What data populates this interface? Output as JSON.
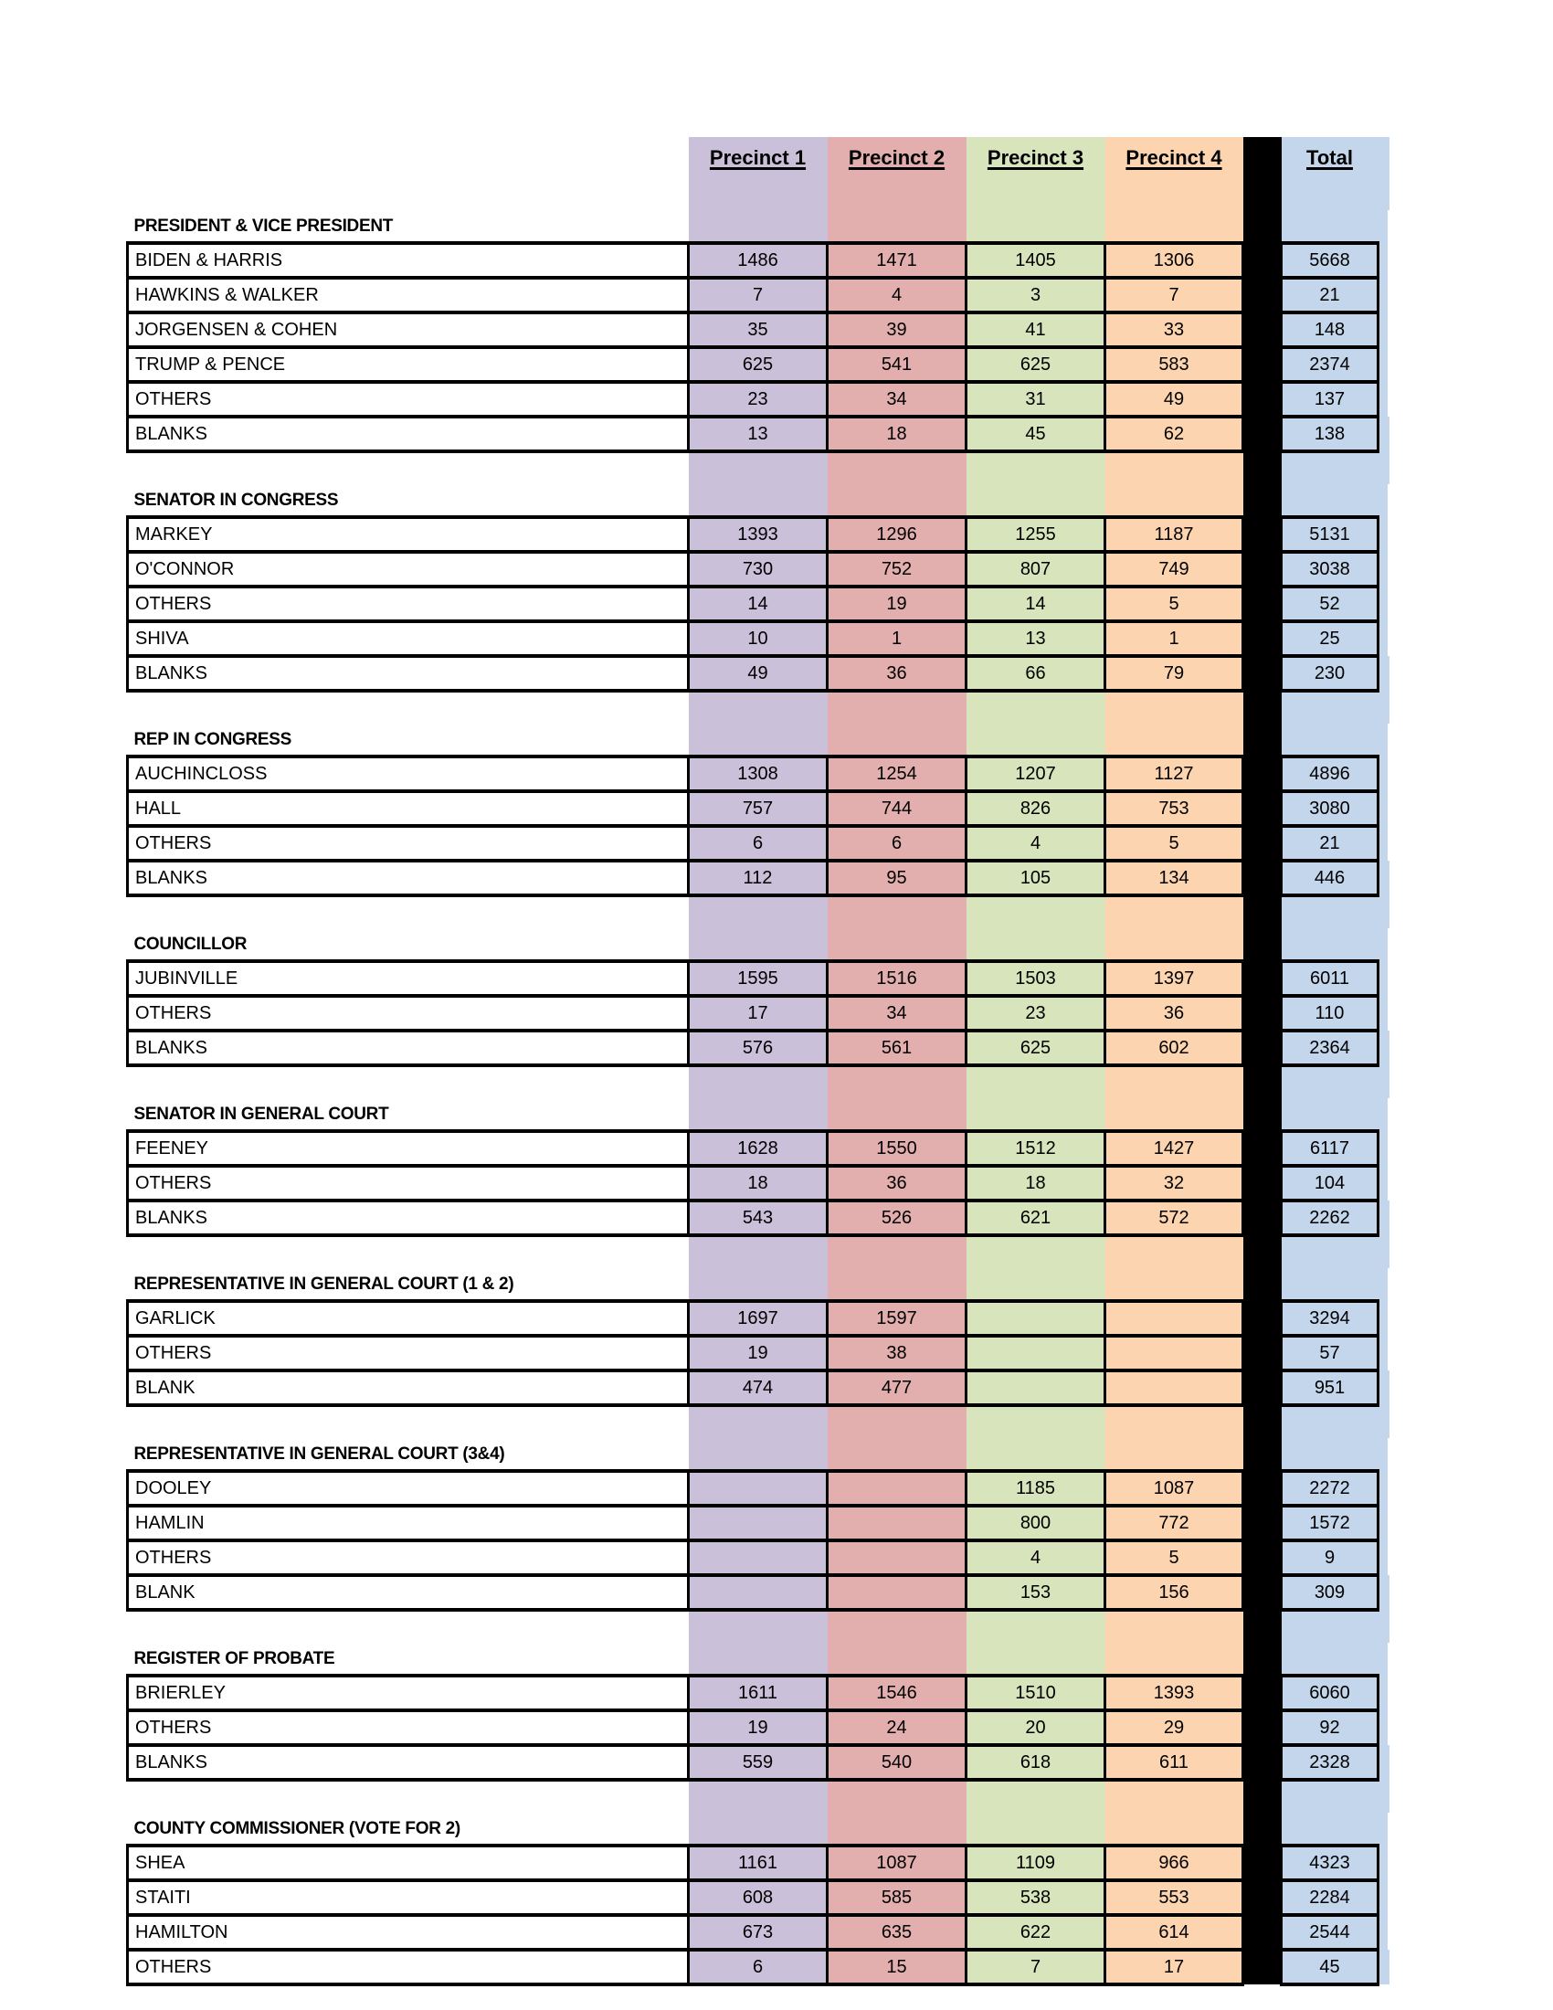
{
  "header": {
    "columns": [
      "Precinct 1",
      "Precinct 2",
      "Precinct 3",
      "Precinct 4"
    ],
    "total": "Total"
  },
  "colors": {
    "precinct1": "#CBC0DA",
    "precinct2": "#E2AFAE",
    "precinct3": "#D8E4BC",
    "precinct4": "#FCD5B0",
    "total": "#C3D6EB",
    "separator": "#000000"
  },
  "sections": [
    {
      "title": "PRESIDENT & VICE PRESIDENT",
      "rows": [
        {
          "label": "BIDEN & HARRIS",
          "values": [
            1486,
            1471,
            1405,
            1306,
            5668
          ]
        },
        {
          "label": "HAWKINS & WALKER",
          "values": [
            7,
            4,
            3,
            7,
            21
          ]
        },
        {
          "label": "JORGENSEN & COHEN",
          "values": [
            35,
            39,
            41,
            33,
            148
          ]
        },
        {
          "label": "TRUMP & PENCE",
          "values": [
            625,
            541,
            625,
            583,
            2374
          ]
        },
        {
          "label": "OTHERS",
          "values": [
            23,
            34,
            31,
            49,
            137
          ]
        },
        {
          "label": "BLANKS",
          "values": [
            13,
            18,
            45,
            62,
            138
          ]
        }
      ]
    },
    {
      "title": "SENATOR IN CONGRESS",
      "rows": [
        {
          "label": "MARKEY",
          "values": [
            1393,
            1296,
            1255,
            1187,
            5131
          ]
        },
        {
          "label": "O'CONNOR",
          "values": [
            730,
            752,
            807,
            749,
            3038
          ]
        },
        {
          "label": "OTHERS",
          "values": [
            14,
            19,
            14,
            5,
            52
          ]
        },
        {
          "label": "SHIVA",
          "values": [
            10,
            1,
            13,
            1,
            25
          ]
        },
        {
          "label": "BLANKS",
          "values": [
            49,
            36,
            66,
            79,
            230
          ]
        }
      ]
    },
    {
      "title": "REP IN CONGRESS",
      "rows": [
        {
          "label": "AUCHINCLOSS",
          "values": [
            1308,
            1254,
            1207,
            1127,
            4896
          ]
        },
        {
          "label": "HALL",
          "values": [
            757,
            744,
            826,
            753,
            3080
          ]
        },
        {
          "label": "OTHERS",
          "values": [
            6,
            6,
            4,
            5,
            21
          ]
        },
        {
          "label": "BLANKS",
          "values": [
            112,
            95,
            105,
            134,
            446
          ]
        }
      ]
    },
    {
      "title": "COUNCILLOR",
      "rows": [
        {
          "label": "JUBINVILLE",
          "values": [
            1595,
            1516,
            1503,
            1397,
            6011
          ]
        },
        {
          "label": "OTHERS",
          "values": [
            17,
            34,
            23,
            36,
            110
          ]
        },
        {
          "label": "BLANKS",
          "values": [
            576,
            561,
            625,
            602,
            2364
          ]
        }
      ]
    },
    {
      "title": "SENATOR IN GENERAL COURT",
      "rows": [
        {
          "label": "FEENEY",
          "values": [
            1628,
            1550,
            1512,
            1427,
            6117
          ]
        },
        {
          "label": "OTHERS",
          "values": [
            18,
            36,
            18,
            32,
            104
          ]
        },
        {
          "label": "BLANKS",
          "values": [
            543,
            526,
            621,
            572,
            2262
          ]
        }
      ]
    },
    {
      "title": "REPRESENTATIVE IN GENERAL COURT (1 & 2)",
      "rows": [
        {
          "label": "GARLICK",
          "values": [
            1697,
            1597,
            "",
            "",
            3294
          ]
        },
        {
          "label": "OTHERS",
          "values": [
            19,
            38,
            "",
            "",
            57
          ]
        },
        {
          "label": "BLANK",
          "values": [
            474,
            477,
            "",
            "",
            951
          ]
        }
      ]
    },
    {
      "title": "REPRESENTATIVE IN GENERAL COURT (3&4)",
      "rows": [
        {
          "label": "DOOLEY",
          "values": [
            "",
            "",
            1185,
            1087,
            2272
          ]
        },
        {
          "label": "HAMLIN",
          "values": [
            "",
            "",
            800,
            772,
            1572
          ]
        },
        {
          "label": "OTHERS",
          "values": [
            "",
            "",
            4,
            5,
            9
          ]
        },
        {
          "label": "BLANK",
          "values": [
            "",
            "",
            153,
            156,
            309
          ]
        }
      ]
    },
    {
      "title": "REGISTER OF PROBATE",
      "rows": [
        {
          "label": "BRIERLEY",
          "values": [
            1611,
            1546,
            1510,
            1393,
            6060
          ]
        },
        {
          "label": "OTHERS",
          "values": [
            19,
            24,
            20,
            29,
            92
          ]
        },
        {
          "label": "BLANKS",
          "values": [
            559,
            540,
            618,
            611,
            2328
          ]
        }
      ]
    },
    {
      "title": "COUNTY COMMISSIONER (VOTE FOR 2)",
      "rows": [
        {
          "label": "SHEA",
          "values": [
            1161,
            1087,
            1109,
            966,
            4323
          ]
        },
        {
          "label": "STAITI",
          "values": [
            608,
            585,
            538,
            553,
            2284
          ]
        },
        {
          "label": "HAMILTON",
          "values": [
            673,
            635,
            622,
            614,
            2544
          ]
        },
        {
          "label": "OTHERS",
          "values": [
            6,
            15,
            7,
            17,
            45
          ]
        }
      ]
    }
  ]
}
